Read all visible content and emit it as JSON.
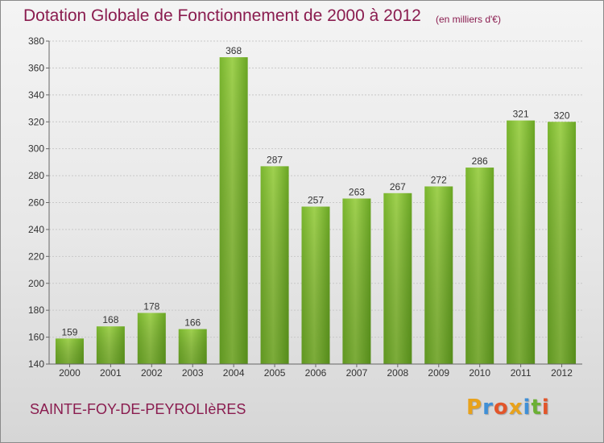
{
  "header": {
    "title": "Dotation Globale de Fonctionnement de 2000 à 2012",
    "unit": "(en milliers d'€)"
  },
  "footer": {
    "commune": "SAINTE-FOY-DE-PEYROLIèRES",
    "logo_text": "Proxiti",
    "logo_colors": [
      "#e8a21c",
      "#3f8fd6",
      "#e2552a",
      "#e8a21c",
      "#3f8fd6",
      "#6bb034",
      "#e2552a"
    ]
  },
  "chart_data": {
    "type": "bar",
    "categories": [
      "2000",
      "2001",
      "2002",
      "2003",
      "2004",
      "2005",
      "2006",
      "2007",
      "2008",
      "2009",
      "2010",
      "2011",
      "2012"
    ],
    "values": [
      159,
      168,
      178,
      166,
      368,
      287,
      257,
      263,
      267,
      272,
      286,
      321,
      320
    ],
    "data_labels": [
      "159",
      "168",
      "178",
      "166",
      "368",
      "287",
      "257",
      "263",
      "267",
      "272",
      "286",
      "321",
      "320"
    ],
    "title": "Dotation Globale de Fonctionnement de 2000 à 2012",
    "ylim": [
      140,
      380
    ],
    "yticks": [
      140,
      160,
      180,
      200,
      220,
      240,
      260,
      280,
      300,
      320,
      340,
      360,
      380
    ],
    "grid": true,
    "bar_color": "#8cc63f",
    "bar_color_dark": "#5f9a1e"
  }
}
